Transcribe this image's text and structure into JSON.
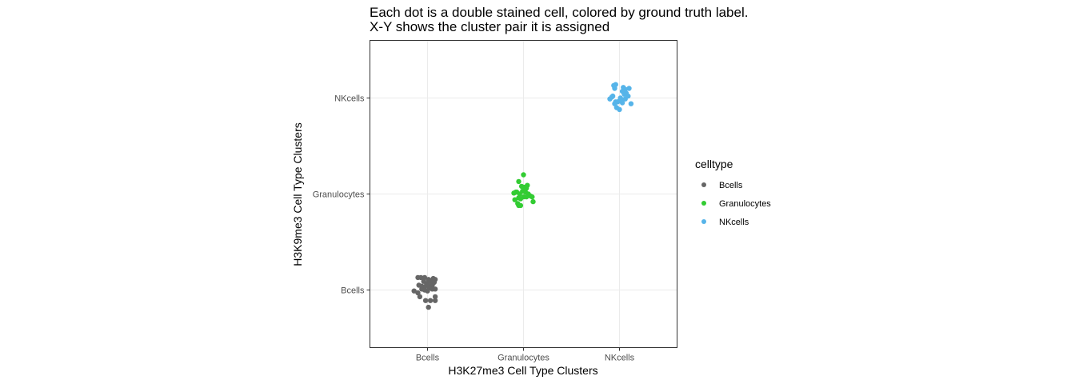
{
  "chart_data": {
    "type": "scatter",
    "title": "Each dot is a double stained cell, colored by ground truth label.",
    "subtitle": "X-Y shows the cluster pair it is assigned",
    "xlabel": "H3K27me3 Cell Type Clusters",
    "ylabel": "H3K9me3 Cell Type Clusters",
    "x_categories": [
      "Bcells",
      "Granulocytes",
      "NKcells"
    ],
    "y_categories": [
      "Bcells",
      "Granulocytes",
      "NKcells"
    ],
    "grid": true,
    "legend": {
      "title": "celltype",
      "position": "right",
      "entries": [
        "Bcells",
        "Granulocytes",
        "NKcells"
      ]
    },
    "colors": {
      "Bcells": "#666666",
      "Granulocytes": "#33cc33",
      "NKcells": "#56b4e9"
    },
    "series": [
      {
        "name": "Bcells",
        "x_category": "Bcells",
        "y_category": "Bcells",
        "points": [
          [
            -0.1,
            0.13
          ],
          [
            -0.07,
            0.13
          ],
          [
            -0.03,
            0.13
          ],
          [
            0.01,
            0.11
          ],
          [
            0.06,
            0.12
          ],
          [
            -0.09,
            0.05
          ],
          [
            -0.06,
            0.04
          ],
          [
            -0.03,
            0.03
          ],
          [
            -0.01,
            0.06
          ],
          [
            0.02,
            0.04
          ],
          [
            0.05,
            0.05
          ],
          [
            0.07,
            0.08
          ],
          [
            -0.04,
            0.09
          ],
          [
            0.0,
            0.07
          ],
          [
            0.03,
            0.09
          ],
          [
            -0.14,
            -0.01
          ],
          [
            -0.1,
            -0.03
          ],
          [
            -0.06,
            0.01
          ],
          [
            -0.03,
            0.0
          ],
          [
            0.0,
            -0.01
          ],
          [
            0.02,
            0.02
          ],
          [
            0.05,
            0.01
          ],
          [
            0.08,
            0.01
          ],
          [
            -0.08,
            -0.07
          ],
          [
            -0.02,
            -0.11
          ],
          [
            0.03,
            -0.11
          ],
          [
            0.08,
            -0.07
          ],
          [
            0.08,
            0.11
          ],
          [
            0.08,
            -0.11
          ],
          [
            0.01,
            -0.18
          ]
        ]
      },
      {
        "name": "Granulocytes",
        "x_category": "Granulocytes",
        "y_category": "Granulocytes",
        "points": [
          [
            0.0,
            0.2
          ],
          [
            -0.05,
            0.13
          ],
          [
            0.04,
            0.09
          ],
          [
            -0.02,
            0.08
          ],
          [
            0.01,
            0.07
          ],
          [
            -0.1,
            0.01
          ],
          [
            -0.07,
            0.02
          ],
          [
            -0.04,
            0.0
          ],
          [
            -0.01,
            0.03
          ],
          [
            0.02,
            0.02
          ],
          [
            0.05,
            0.0
          ],
          [
            0.07,
            -0.02
          ],
          [
            -0.05,
            -0.04
          ],
          [
            -0.03,
            -0.05
          ],
          [
            0.0,
            -0.03
          ],
          [
            -0.09,
            -0.06
          ],
          [
            -0.06,
            -0.1
          ],
          [
            -0.03,
            -0.12
          ],
          [
            -0.05,
            -0.12
          ],
          [
            0.03,
            -0.03
          ],
          [
            0.09,
            -0.03
          ],
          [
            0.1,
            -0.08
          ],
          [
            0.03,
            0.06
          ],
          [
            -0.08,
            0.02
          ]
        ]
      },
      {
        "name": "NKcells",
        "x_category": "NKcells",
        "y_category": "NKcells",
        "points": [
          [
            -0.06,
            0.13
          ],
          [
            -0.05,
            0.1
          ],
          [
            0.06,
            0.09
          ],
          [
            0.1,
            0.1
          ],
          [
            -0.04,
            0.14
          ],
          [
            0.07,
            0.05
          ],
          [
            0.03,
            0.07
          ],
          [
            0.05,
            0.04
          ],
          [
            -0.1,
            -0.01
          ],
          [
            -0.08,
            0.01
          ],
          [
            -0.04,
            -0.04
          ],
          [
            0.02,
            -0.02
          ],
          [
            0.03,
            -0.05
          ],
          [
            0.0,
            -0.03
          ],
          [
            0.01,
            0.0
          ],
          [
            -0.02,
            -0.04
          ],
          [
            -0.05,
            -0.06
          ],
          [
            0.0,
            -0.12
          ],
          [
            -0.03,
            -0.1
          ],
          [
            0.06,
            -0.01
          ],
          [
            0.09,
            0.02
          ],
          [
            0.12,
            -0.06
          ],
          [
            0.04,
            0.11
          ],
          [
            -0.07,
            0.02
          ]
        ]
      }
    ]
  }
}
